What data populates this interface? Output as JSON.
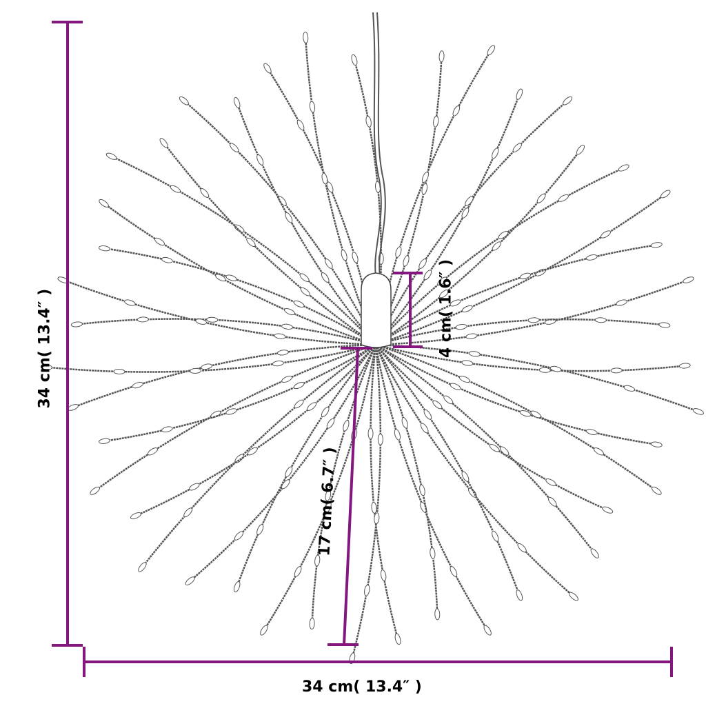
{
  "dimensions": {
    "height_label": "34 cm( 13.4″ )",
    "width_label": "34 cm( 13.4″ )",
    "base_height_label": "4 cm( 1.6″ )",
    "strand_length_label": "17 cm( 6.7″ )"
  },
  "colors": {
    "dimension": "#84177f",
    "strand": "#555555"
  }
}
